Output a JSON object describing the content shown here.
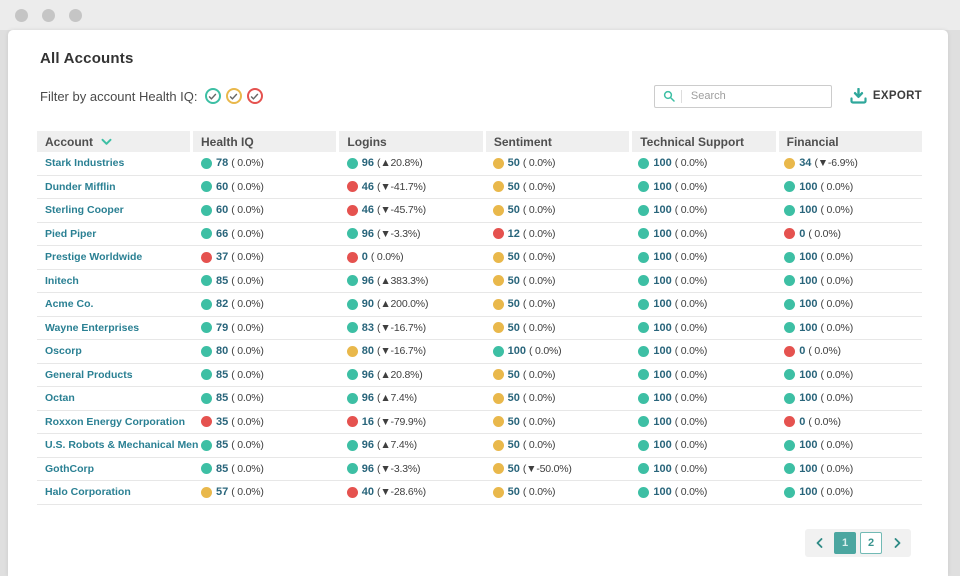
{
  "window": {
    "control_dots": 3
  },
  "header": {
    "title": "All Accounts"
  },
  "filter": {
    "label": "Filter by account Health IQ:",
    "options": [
      {
        "name": "healthy",
        "color": "#3dbfa4"
      },
      {
        "name": "warning",
        "color": "#e9b84b"
      },
      {
        "name": "critical",
        "color": "#e5524f"
      }
    ]
  },
  "toolbar": {
    "search_placeholder": "Search",
    "export_label": "EXPORT"
  },
  "icons": {
    "filter_option": "circled-check",
    "search": "magnifier",
    "export": "download",
    "account_sort": "chevron-down",
    "pagination_prev": "chevron-left",
    "pagination_next": "chevron-right"
  },
  "colors": {
    "teal": "#3dbfa4",
    "yellow": "#e9b84b",
    "red": "#e5524f",
    "accent": "#2fa79b",
    "link": "#2a8093"
  },
  "table": {
    "columns": [
      "Account",
      "Health IQ",
      "Logins",
      "Sentiment",
      "Technical Support",
      "Financial"
    ],
    "sorted_column": "Account",
    "rows": [
      {
        "account": "Stark Industries",
        "metrics": [
          {
            "status": "teal",
            "value": "78",
            "change": "( 0.0%)"
          },
          {
            "status": "teal",
            "value": "96",
            "change": "(▲20.8%)"
          },
          {
            "status": "yellow",
            "value": "50",
            "change": "( 0.0%)"
          },
          {
            "status": "teal",
            "value": "100",
            "change": "( 0.0%)"
          },
          {
            "status": "yellow",
            "value": "34",
            "change": "(▼-6.9%)"
          }
        ]
      },
      {
        "account": "Dunder Mifflin",
        "metrics": [
          {
            "status": "teal",
            "value": "60",
            "change": "( 0.0%)"
          },
          {
            "status": "red",
            "value": "46",
            "change": "(▼-41.7%)"
          },
          {
            "status": "yellow",
            "value": "50",
            "change": "( 0.0%)"
          },
          {
            "status": "teal",
            "value": "100",
            "change": "( 0.0%)"
          },
          {
            "status": "teal",
            "value": "100",
            "change": "( 0.0%)"
          }
        ]
      },
      {
        "account": "Sterling Cooper",
        "metrics": [
          {
            "status": "teal",
            "value": "60",
            "change": "( 0.0%)"
          },
          {
            "status": "red",
            "value": "46",
            "change": "(▼-45.7%)"
          },
          {
            "status": "yellow",
            "value": "50",
            "change": "( 0.0%)"
          },
          {
            "status": "teal",
            "value": "100",
            "change": "( 0.0%)"
          },
          {
            "status": "teal",
            "value": "100",
            "change": "( 0.0%)"
          }
        ]
      },
      {
        "account": "Pied Piper",
        "metrics": [
          {
            "status": "teal",
            "value": "66",
            "change": "( 0.0%)"
          },
          {
            "status": "teal",
            "value": "96",
            "change": "(▼-3.3%)"
          },
          {
            "status": "red",
            "value": "12",
            "change": "( 0.0%)"
          },
          {
            "status": "teal",
            "value": "100",
            "change": "( 0.0%)"
          },
          {
            "status": "red",
            "value": "0",
            "change": "( 0.0%)"
          }
        ]
      },
      {
        "account": "Prestige Worldwide",
        "metrics": [
          {
            "status": "red",
            "value": "37",
            "change": "( 0.0%)"
          },
          {
            "status": "red",
            "value": "0",
            "change": "( 0.0%)"
          },
          {
            "status": "yellow",
            "value": "50",
            "change": "( 0.0%)"
          },
          {
            "status": "teal",
            "value": "100",
            "change": "( 0.0%)"
          },
          {
            "status": "teal",
            "value": "100",
            "change": "( 0.0%)"
          }
        ]
      },
      {
        "account": "Initech",
        "metrics": [
          {
            "status": "teal",
            "value": "85",
            "change": "( 0.0%)"
          },
          {
            "status": "teal",
            "value": "96",
            "change": "(▲383.3%)"
          },
          {
            "status": "yellow",
            "value": "50",
            "change": "( 0.0%)"
          },
          {
            "status": "teal",
            "value": "100",
            "change": "( 0.0%)"
          },
          {
            "status": "teal",
            "value": "100",
            "change": "( 0.0%)"
          }
        ]
      },
      {
        "account": "Acme Co.",
        "metrics": [
          {
            "status": "teal",
            "value": "82",
            "change": "( 0.0%)"
          },
          {
            "status": "teal",
            "value": "90",
            "change": "(▲200.0%)"
          },
          {
            "status": "yellow",
            "value": "50",
            "change": "( 0.0%)"
          },
          {
            "status": "teal",
            "value": "100",
            "change": "( 0.0%)"
          },
          {
            "status": "teal",
            "value": "100",
            "change": "( 0.0%)"
          }
        ]
      },
      {
        "account": "Wayne Enterprises",
        "metrics": [
          {
            "status": "teal",
            "value": "79",
            "change": "( 0.0%)"
          },
          {
            "status": "teal",
            "value": "83",
            "change": "(▼-16.7%)"
          },
          {
            "status": "yellow",
            "value": "50",
            "change": "( 0.0%)"
          },
          {
            "status": "teal",
            "value": "100",
            "change": "( 0.0%)"
          },
          {
            "status": "teal",
            "value": "100",
            "change": "( 0.0%)"
          }
        ]
      },
      {
        "account": "Oscorp",
        "metrics": [
          {
            "status": "teal",
            "value": "80",
            "change": "( 0.0%)"
          },
          {
            "status": "yellow",
            "value": "80",
            "change": "(▼-16.7%)"
          },
          {
            "status": "teal",
            "value": "100",
            "change": "( 0.0%)"
          },
          {
            "status": "teal",
            "value": "100",
            "change": "( 0.0%)"
          },
          {
            "status": "red",
            "value": "0",
            "change": "( 0.0%)"
          }
        ]
      },
      {
        "account": "General Products",
        "metrics": [
          {
            "status": "teal",
            "value": "85",
            "change": "( 0.0%)"
          },
          {
            "status": "teal",
            "value": "96",
            "change": "(▲20.8%)"
          },
          {
            "status": "yellow",
            "value": "50",
            "change": "( 0.0%)"
          },
          {
            "status": "teal",
            "value": "100",
            "change": "( 0.0%)"
          },
          {
            "status": "teal",
            "value": "100",
            "change": "( 0.0%)"
          }
        ]
      },
      {
        "account": "Octan",
        "metrics": [
          {
            "status": "teal",
            "value": "85",
            "change": "( 0.0%)"
          },
          {
            "status": "teal",
            "value": "96",
            "change": "(▲7.4%)"
          },
          {
            "status": "yellow",
            "value": "50",
            "change": "( 0.0%)"
          },
          {
            "status": "teal",
            "value": "100",
            "change": "( 0.0%)"
          },
          {
            "status": "teal",
            "value": "100",
            "change": "( 0.0%)"
          }
        ]
      },
      {
        "account": "Roxxon Energy Corporation",
        "metrics": [
          {
            "status": "red",
            "value": "35",
            "change": "( 0.0%)"
          },
          {
            "status": "red",
            "value": "16",
            "change": "(▼-79.9%)"
          },
          {
            "status": "yellow",
            "value": "50",
            "change": "( 0.0%)"
          },
          {
            "status": "teal",
            "value": "100",
            "change": "( 0.0%)"
          },
          {
            "status": "red",
            "value": "0",
            "change": "( 0.0%)"
          }
        ]
      },
      {
        "account": "U.S. Robots & Mechanical Men",
        "metrics": [
          {
            "status": "teal",
            "value": "85",
            "change": "( 0.0%)"
          },
          {
            "status": "teal",
            "value": "96",
            "change": "(▲7.4%)"
          },
          {
            "status": "yellow",
            "value": "50",
            "change": "( 0.0%)"
          },
          {
            "status": "teal",
            "value": "100",
            "change": "( 0.0%)"
          },
          {
            "status": "teal",
            "value": "100",
            "change": "( 0.0%)"
          }
        ]
      },
      {
        "account": "GothCorp",
        "metrics": [
          {
            "status": "teal",
            "value": "85",
            "change": "( 0.0%)"
          },
          {
            "status": "teal",
            "value": "96",
            "change": "(▼-3.3%)"
          },
          {
            "status": "yellow",
            "value": "50",
            "change": "(▼-50.0%)"
          },
          {
            "status": "teal",
            "value": "100",
            "change": "( 0.0%)"
          },
          {
            "status": "teal",
            "value": "100",
            "change": "( 0.0%)"
          }
        ]
      },
      {
        "account": "Halo Corporation",
        "metrics": [
          {
            "status": "yellow",
            "value": "57",
            "change": "( 0.0%)"
          },
          {
            "status": "red",
            "value": "40",
            "change": "(▼-28.6%)"
          },
          {
            "status": "yellow",
            "value": "50",
            "change": "( 0.0%)"
          },
          {
            "status": "teal",
            "value": "100",
            "change": "( 0.0%)"
          },
          {
            "status": "teal",
            "value": "100",
            "change": "( 0.0%)"
          }
        ]
      }
    ]
  },
  "pagination": {
    "pages": [
      "1",
      "2"
    ],
    "active_page": "1"
  }
}
